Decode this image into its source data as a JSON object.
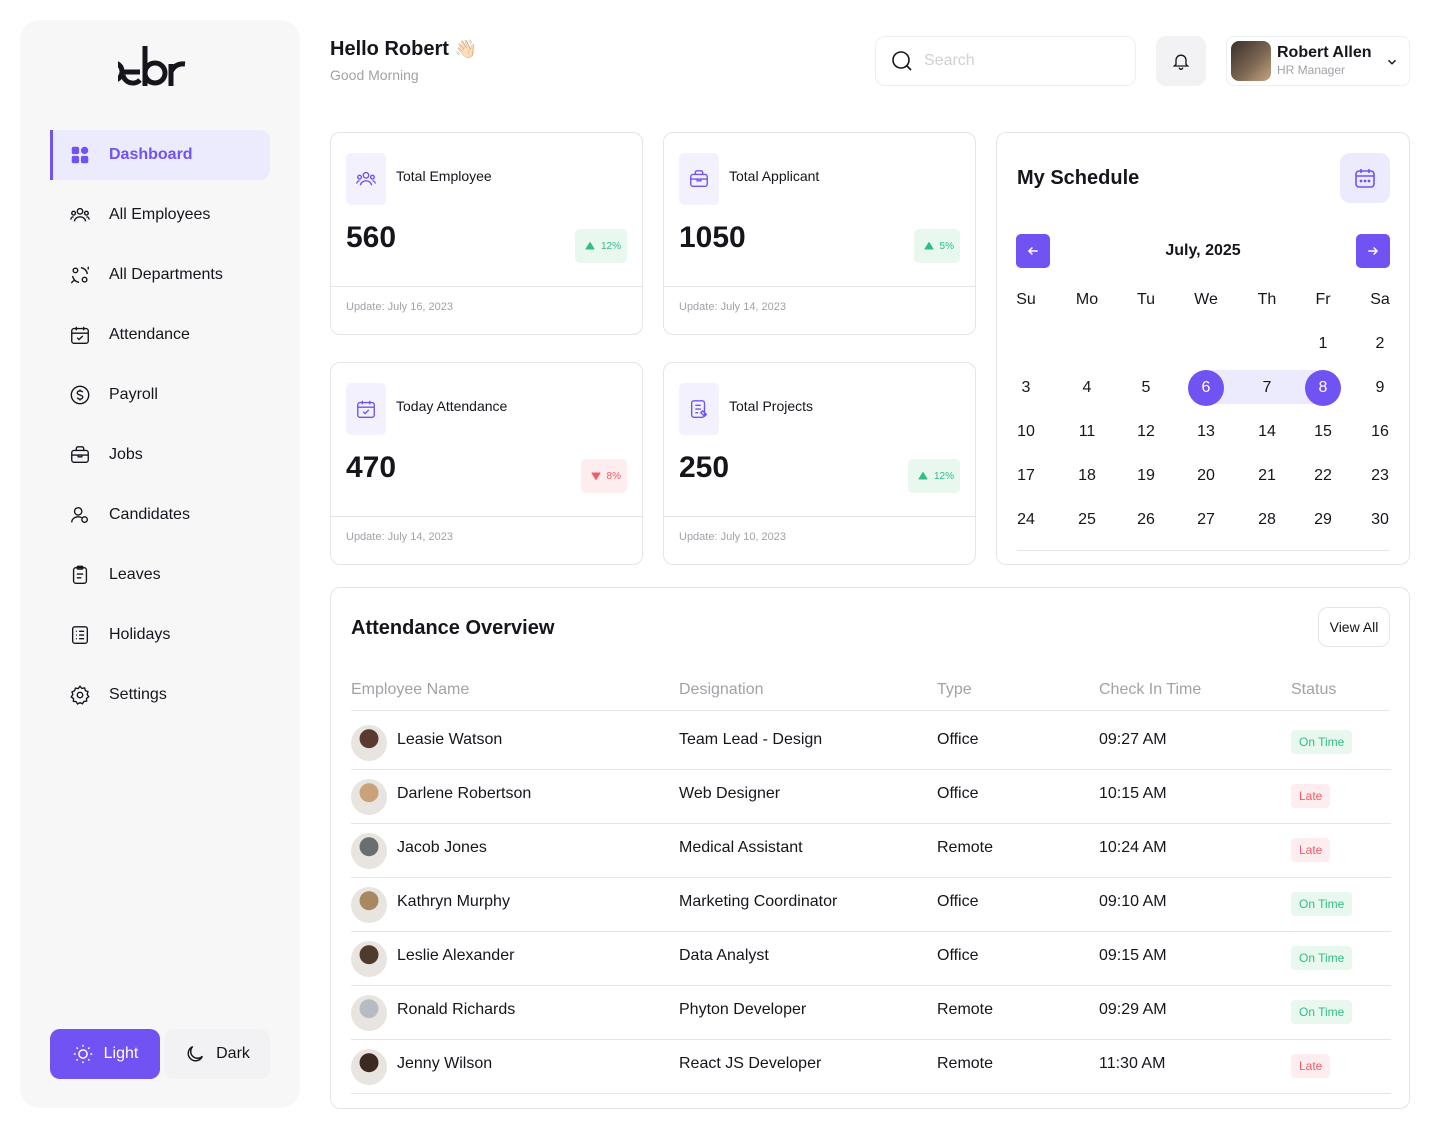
{
  "header": {
    "greeting": "Hello Robert",
    "wave_emoji": "👋🏻",
    "subtitle": "Good Morning"
  },
  "search": {
    "placeholder": "Search"
  },
  "profile": {
    "name": "Robert Allen",
    "role": "HR Manager"
  },
  "brand": {
    "accent": "#7152f3",
    "accent_light": "#eceafd",
    "success": "#30be82",
    "danger": "#f45b69"
  },
  "sidebar": {
    "items": [
      {
        "label": "Dashboard",
        "icon": "dashboard-icon",
        "active": true
      },
      {
        "label": "All Employees",
        "icon": "users-icon"
      },
      {
        "label": "All Departments",
        "icon": "departments-icon"
      },
      {
        "label": "Attendance",
        "icon": "calendar-check-icon"
      },
      {
        "label": "Payroll",
        "icon": "dollar-icon"
      },
      {
        "label": "Jobs",
        "icon": "briefcase-icon"
      },
      {
        "label": "Candidates",
        "icon": "candidates-icon"
      },
      {
        "label": "Leaves",
        "icon": "clipboard-icon"
      },
      {
        "label": "Holidays",
        "icon": "list-icon"
      },
      {
        "label": "Settings",
        "icon": "gear-icon"
      }
    ],
    "theme": {
      "light": "Light",
      "dark": "Dark"
    }
  },
  "stats": [
    {
      "label": "Total Employee",
      "value": "560",
      "change": "12%",
      "trend": "up",
      "update": "Update: July 16, 2023",
      "icon": "users-icon"
    },
    {
      "label": "Total Applicant",
      "value": "1050",
      "change": "5%",
      "trend": "up",
      "update": "Update: July 14, 2023",
      "icon": "briefcase-icon"
    },
    {
      "label": "Today Attendance",
      "value": "470",
      "change": "8%",
      "trend": "down",
      "update": "Update: July 14, 2023",
      "icon": "calendar-check-icon"
    },
    {
      "label": "Total Projects",
      "value": "250",
      "change": "12%",
      "trend": "up",
      "update": "Update: July 10, 2023",
      "icon": "document-icon"
    }
  ],
  "schedule": {
    "title": "My Schedule",
    "month": "July, 2025",
    "weekdays": [
      "Su",
      "Mo",
      "Tu",
      "We",
      "Th",
      "Fr",
      "Sa"
    ],
    "first_weekday_index": 5,
    "days_shown": 30,
    "selected_start": 6,
    "selected_end": 8
  },
  "attendance": {
    "title": "Attendance Overview",
    "view_all": "View All",
    "columns": [
      "Employee Name",
      "Designation",
      "Type",
      "Check In Time",
      "Status"
    ],
    "rows": [
      {
        "name": "Leasie Watson",
        "designation": "Team Lead - Design",
        "type": "Office",
        "time": "09:27 AM",
        "status": "On Time",
        "status_type": "ok",
        "avatar_color": "#5a3a2e"
      },
      {
        "name": "Darlene Robertson",
        "designation": "Web Designer",
        "type": "Office",
        "time": "10:15 AM",
        "status": "Late",
        "status_type": "late",
        "avatar_color": "#c9a27a"
      },
      {
        "name": "Jacob Jones",
        "designation": "Medical Assistant",
        "type": "Remote",
        "time": "10:24 AM",
        "status": "Late",
        "status_type": "late",
        "avatar_color": "#6b6e70"
      },
      {
        "name": "Kathryn Murphy",
        "designation": "Marketing Coordinator",
        "type": "Office",
        "time": "09:10 AM",
        "status": "On Time",
        "status_type": "ok",
        "avatar_color": "#a88763"
      },
      {
        "name": "Leslie Alexander",
        "designation": "Data Analyst",
        "type": "Office",
        "time": "09:15 AM",
        "status": "On Time",
        "status_type": "ok",
        "avatar_color": "#4e3b2c"
      },
      {
        "name": "Ronald Richards",
        "designation": "Phyton Developer",
        "type": "Remote",
        "time": "09:29 AM",
        "status": "On Time",
        "status_type": "ok",
        "avatar_color": "#b7bcc4"
      },
      {
        "name": "Jenny Wilson",
        "designation": "React JS Developer",
        "type": "Remote",
        "time": "11:30 AM",
        "status": "Late",
        "status_type": "late",
        "avatar_color": "#3c2a22"
      }
    ]
  }
}
